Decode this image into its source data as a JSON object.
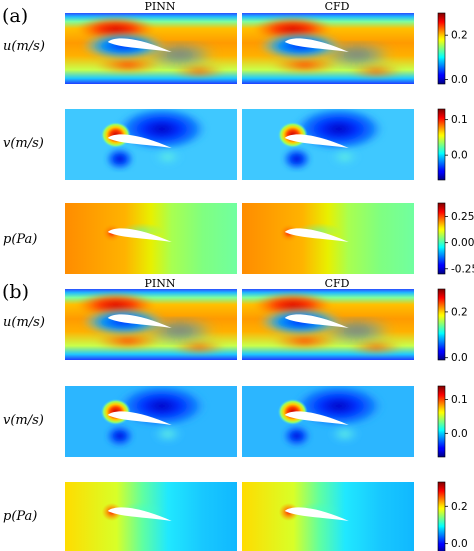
{
  "figure": {
    "col_titles": [
      "PINN",
      "CFD"
    ],
    "panels": [
      {
        "label": "(a)"
      },
      {
        "label": "(b)"
      }
    ]
  },
  "chart_data": {
    "type": "heatmap",
    "colormap": "jet",
    "columns": [
      "PINN",
      "CFD"
    ],
    "panels": [
      {
        "label": "(a)",
        "rows": [
          {
            "field": "u",
            "ylabel": "u(m/s)",
            "colorbar_ticks": [
              "0.2",
              "0.0"
            ],
            "colorbar_tick_values": [
              0.2,
              0.0
            ],
            "vmin": -0.02,
            "vmax": 0.3
          },
          {
            "field": "v",
            "ylabel": "v(m/s)",
            "colorbar_ticks": [
              "0.1",
              "0.0"
            ],
            "colorbar_tick_values": [
              0.1,
              0.0
            ],
            "vmin": -0.07,
            "vmax": 0.13
          },
          {
            "field": "p",
            "ylabel": "p(Pa)",
            "colorbar_ticks": [
              "0.25",
              "0.00",
              "-0.25"
            ],
            "colorbar_tick_values": [
              0.25,
              0.0,
              -0.25
            ],
            "vmin": -0.3,
            "vmax": 0.38
          }
        ]
      },
      {
        "label": "(b)",
        "rows": [
          {
            "field": "u",
            "ylabel": "u(m/s)",
            "colorbar_ticks": [
              "0.2",
              "0.0"
            ],
            "colorbar_tick_values": [
              0.2,
              0.0
            ],
            "vmin": -0.01,
            "vmax": 0.3
          },
          {
            "field": "v",
            "ylabel": "v(m/s)",
            "colorbar_ticks": [
              "0.1",
              "0.0"
            ],
            "colorbar_tick_values": [
              0.1,
              0.0
            ],
            "vmin": -0.07,
            "vmax": 0.14
          },
          {
            "field": "p",
            "ylabel": "p(Pa)",
            "colorbar_ticks": [
              "0.2",
              "0.0"
            ],
            "colorbar_tick_values": [
              0.2,
              0.0
            ],
            "vmin": -0.05,
            "vmax": 0.33
          }
        ]
      }
    ]
  }
}
